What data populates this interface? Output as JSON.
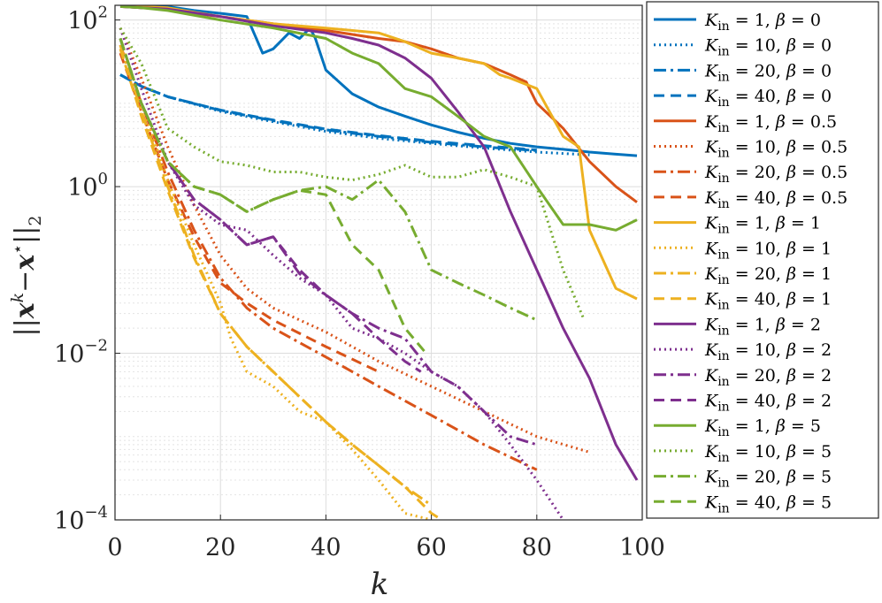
{
  "chart_data": {
    "type": "line",
    "xlabel": "k",
    "ylabel": "||x^k − x⋆||_2",
    "x_scale": "linear",
    "y_scale": "log",
    "xlim": [
      0,
      100
    ],
    "ylim": [
      0.0001,
      150
    ],
    "x_ticks": [
      0,
      20,
      40,
      60,
      80,
      100
    ],
    "x_tick_labels": [
      "0",
      "20",
      "40",
      "60",
      "80",
      "100"
    ],
    "y_ticks": [
      0.0001,
      0.01,
      1,
      100
    ],
    "y_tick_labels": [
      {
        "base": "10",
        "exp": "−4"
      },
      {
        "base": "10",
        "exp": "−2"
      },
      {
        "base": "10",
        "exp": "0"
      },
      {
        "base": "10",
        "exp": "2"
      }
    ],
    "grid": true,
    "minor_grid": true,
    "legend_position": "outside-right",
    "colors": {
      "beta0": "#0072BD",
      "beta0.5": "#D95319",
      "beta1": "#EDB120",
      "beta2": "#7E2F8E",
      "beta5": "#77AC30"
    },
    "series": [
      {
        "name": "K_in = 1, β = 0",
        "label": {
          "K": "1",
          "beta": "0"
        },
        "color": "#0072BD",
        "style": "solid",
        "x": [
          1,
          5,
          10,
          15,
          20,
          25,
          28,
          30,
          33,
          35,
          37,
          38,
          40,
          45,
          50,
          55,
          60,
          65,
          70,
          75,
          80,
          85,
          90,
          95,
          99
        ],
        "y": [
          150,
          140,
          145,
          130,
          120,
          110,
          40,
          45,
          70,
          60,
          80,
          60,
          25,
          13,
          9,
          7,
          5.5,
          4.5,
          3.8,
          3.3,
          3.0,
          2.8,
          2.6,
          2.45,
          2.35
        ]
      },
      {
        "name": "K_in = 10, β = 0",
        "label": {
          "K": "10",
          "beta": "0"
        },
        "color": "#0072BD",
        "style": "dotted",
        "x": [
          1,
          5,
          10,
          20,
          30,
          40,
          50,
          60,
          70,
          80,
          90
        ],
        "y": [
          22,
          16,
          12,
          8,
          6,
          4.6,
          3.8,
          3.3,
          2.9,
          2.6,
          2.4
        ]
      },
      {
        "name": "K_in = 20, β = 0",
        "label": {
          "K": "20",
          "beta": "0"
        },
        "color": "#0072BD",
        "style": "dashdot",
        "x": [
          1,
          5,
          10,
          20,
          30,
          40,
          50,
          60,
          70,
          80
        ],
        "y": [
          22,
          16,
          12,
          8.2,
          6.2,
          4.8,
          4.0,
          3.4,
          3.0,
          2.7
        ]
      },
      {
        "name": "K_in = 40, β = 0",
        "label": {
          "K": "40",
          "beta": "0"
        },
        "color": "#0072BD",
        "style": "dashed",
        "x": [
          1,
          5,
          10,
          20,
          30,
          40,
          50,
          60,
          70,
          80
        ],
        "y": [
          22,
          16,
          12,
          8.3,
          6.3,
          4.9,
          4.1,
          3.5,
          3.1,
          2.75
        ]
      },
      {
        "name": "K_in = 1, β = 0.5",
        "label": {
          "K": "1",
          "beta": "0.5"
        },
        "color": "#D95319",
        "style": "solid",
        "x": [
          1,
          5,
          10,
          15,
          20,
          30,
          40,
          50,
          55,
          60,
          65,
          70,
          75,
          78,
          80,
          85,
          90,
          95,
          99
        ],
        "y": [
          145,
          140,
          135,
          120,
          110,
          90,
          75,
          60,
          55,
          45,
          35,
          30,
          22,
          18,
          10,
          5,
          2,
          1.0,
          0.65
        ]
      },
      {
        "name": "K_in = 10, β = 0.5",
        "label": {
          "K": "10",
          "beta": "0.5"
        },
        "color": "#D95319",
        "style": "dotted",
        "x": [
          1,
          5,
          10,
          15,
          20,
          25,
          30,
          40,
          50,
          60,
          70,
          80,
          90
        ],
        "y": [
          80,
          20,
          3,
          0.6,
          0.15,
          0.06,
          0.035,
          0.018,
          0.008,
          0.004,
          0.002,
          0.001,
          0.00065
        ]
      },
      {
        "name": "K_in = 20, β = 0.5",
        "label": {
          "K": "20",
          "beta": "0.5"
        },
        "color": "#D95319",
        "style": "dashdot",
        "x": [
          1,
          5,
          10,
          15,
          20,
          25,
          30,
          40,
          50,
          60,
          70,
          80
        ],
        "y": [
          50,
          10,
          1.5,
          0.3,
          0.08,
          0.035,
          0.02,
          0.009,
          0.004,
          0.0018,
          0.0008,
          0.0004
        ]
      },
      {
        "name": "K_in = 40, β = 0.5",
        "label": {
          "K": "40",
          "beta": "0.5"
        },
        "color": "#D95319",
        "style": "dashed",
        "x": [
          1,
          5,
          10,
          15,
          20,
          25,
          30,
          40,
          50
        ],
        "y": [
          40,
          8,
          1.2,
          0.25,
          0.07,
          0.04,
          0.025,
          0.012,
          0.006
        ]
      },
      {
        "name": "K_in = 1, β = 1",
        "label": {
          "K": "1",
          "beta": "1"
        },
        "color": "#EDB120",
        "style": "solid",
        "x": [
          1,
          5,
          10,
          20,
          30,
          40,
          50,
          55,
          60,
          65,
          70,
          73,
          75,
          80,
          85,
          88,
          90,
          95,
          99
        ],
        "y": [
          150,
          145,
          140,
          110,
          90,
          80,
          70,
          55,
          40,
          35,
          30,
          22,
          20,
          15,
          4,
          3,
          0.3,
          0.06,
          0.045
        ]
      },
      {
        "name": "K_in = 10, β = 1",
        "label": {
          "K": "10",
          "beta": "1"
        },
        "color": "#EDB120",
        "style": "dotted",
        "x": [
          1,
          5,
          10,
          15,
          20,
          22,
          25,
          30,
          35,
          40,
          45,
          50,
          55,
          60
        ],
        "y": [
          60,
          10,
          1.2,
          0.2,
          0.04,
          0.015,
          0.006,
          0.004,
          0.002,
          0.0015,
          0.0007,
          0.0003,
          0.00012,
          0.0001
        ]
      },
      {
        "name": "K_in = 20, β = 1",
        "label": {
          "K": "20",
          "beta": "1"
        },
        "color": "#EDB120",
        "style": "dashdot",
        "x": [
          1,
          5,
          10,
          15,
          20,
          25,
          30,
          35,
          40,
          45,
          50,
          55,
          60
        ],
        "y": [
          50,
          8,
          1.0,
          0.15,
          0.03,
          0.012,
          0.006,
          0.003,
          0.0015,
          0.0008,
          0.00045,
          0.00025,
          0.00015
        ]
      },
      {
        "name": "K_in = 40, β = 1",
        "label": {
          "K": "40",
          "beta": "1"
        },
        "color": "#EDB120",
        "style": "dashed",
        "x": [
          1,
          5,
          10,
          15,
          20,
          25,
          30,
          35,
          40,
          45,
          50,
          55,
          60,
          62
        ],
        "y": [
          45,
          7,
          0.9,
          0.14,
          0.03,
          0.012,
          0.006,
          0.003,
          0.0015,
          0.0008,
          0.00045,
          0.00025,
          0.00012,
          0.0001
        ]
      },
      {
        "name": "K_in = 1, β = 2",
        "label": {
          "K": "1",
          "beta": "2"
        },
        "color": "#7E2F8E",
        "style": "solid",
        "x": [
          1,
          5,
          10,
          20,
          30,
          40,
          45,
          50,
          55,
          60,
          65,
          70,
          75,
          80,
          85,
          90,
          95,
          99
        ],
        "y": [
          145,
          140,
          135,
          110,
          85,
          70,
          60,
          50,
          35,
          20,
          8,
          3,
          0.5,
          0.1,
          0.02,
          0.005,
          0.0008,
          0.0003
        ]
      },
      {
        "name": "K_in = 10, β = 2",
        "label": {
          "K": "10",
          "beta": "2"
        },
        "color": "#7E2F8E",
        "style": "dotted",
        "x": [
          1,
          5,
          10,
          15,
          20,
          25,
          30,
          35,
          40,
          45,
          50,
          55,
          60,
          65,
          70,
          75,
          80,
          85
        ],
        "y": [
          80,
          15,
          2,
          0.6,
          0.35,
          0.3,
          0.15,
          0.08,
          0.05,
          0.02,
          0.015,
          0.01,
          0.006,
          0.004,
          0.002,
          0.0008,
          0.0003,
          0.0001
        ]
      },
      {
        "name": "K_in = 20, β = 2",
        "label": {
          "K": "20",
          "beta": "2"
        },
        "color": "#7E2F8E",
        "style": "dashdot",
        "x": [
          1,
          5,
          10,
          15,
          20,
          25,
          30,
          35,
          40,
          45,
          50,
          55,
          60,
          65,
          70,
          75,
          80
        ],
        "y": [
          60,
          10,
          2,
          0.7,
          0.4,
          0.2,
          0.25,
          0.09,
          0.05,
          0.03,
          0.02,
          0.015,
          0.006,
          0.004,
          0.002,
          0.001,
          0.0008
        ]
      },
      {
        "name": "K_in = 40, β = 2",
        "label": {
          "K": "40",
          "beta": "2"
        },
        "color": "#7E2F8E",
        "style": "dashed",
        "x": [
          1,
          5,
          10,
          15,
          20,
          25,
          30,
          35,
          40,
          45,
          50,
          55,
          58
        ],
        "y": [
          60,
          10,
          2,
          0.7,
          0.4,
          0.2,
          0.25,
          0.1,
          0.05,
          0.03,
          0.015,
          0.008,
          0.006
        ]
      },
      {
        "name": "K_in = 1, β = 5",
        "label": {
          "K": "1",
          "beta": "5"
        },
        "color": "#77AC30",
        "style": "solid",
        "x": [
          1,
          5,
          10,
          20,
          30,
          40,
          45,
          50,
          55,
          60,
          65,
          70,
          75,
          80,
          85,
          90,
          95,
          99
        ],
        "y": [
          145,
          140,
          130,
          100,
          80,
          60,
          40,
          30,
          15,
          12,
          7,
          4,
          3,
          1.0,
          0.35,
          0.35,
          0.3,
          0.4
        ]
      },
      {
        "name": "K_in = 10, β = 5",
        "label": {
          "K": "10",
          "beta": "5"
        },
        "color": "#77AC30",
        "style": "dotted",
        "x": [
          1,
          5,
          10,
          15,
          20,
          25,
          30,
          35,
          40,
          45,
          50,
          55,
          60,
          65,
          70,
          75,
          80,
          85,
          89
        ],
        "y": [
          80,
          30,
          5,
          3,
          2,
          1.8,
          1.5,
          1.5,
          1.3,
          1.2,
          1.4,
          1.8,
          1.3,
          1.3,
          1.6,
          1.3,
          1.0,
          0.1,
          0.025
        ]
      },
      {
        "name": "K_in = 20, β = 5",
        "label": {
          "K": "20",
          "beta": "5"
        },
        "color": "#77AC30",
        "style": "dashdot",
        "x": [
          1,
          5,
          10,
          15,
          20,
          25,
          30,
          35,
          40,
          45,
          50,
          55,
          60,
          65,
          70,
          75,
          80
        ],
        "y": [
          60,
          10,
          2,
          1.0,
          0.8,
          0.5,
          0.7,
          0.9,
          1.0,
          0.7,
          1.2,
          0.5,
          0.1,
          0.07,
          0.05,
          0.035,
          0.025
        ]
      },
      {
        "name": "K_in = 40, β = 5",
        "label": {
          "K": "40",
          "beta": "5"
        },
        "color": "#77AC30",
        "style": "dashed",
        "x": [
          1,
          5,
          10,
          15,
          20,
          25,
          30,
          35,
          40,
          45,
          50,
          55,
          59
        ],
        "y": [
          60,
          10,
          2,
          1.0,
          0.8,
          0.5,
          0.7,
          0.9,
          0.8,
          0.2,
          0.1,
          0.02,
          0.01
        ]
      }
    ]
  }
}
